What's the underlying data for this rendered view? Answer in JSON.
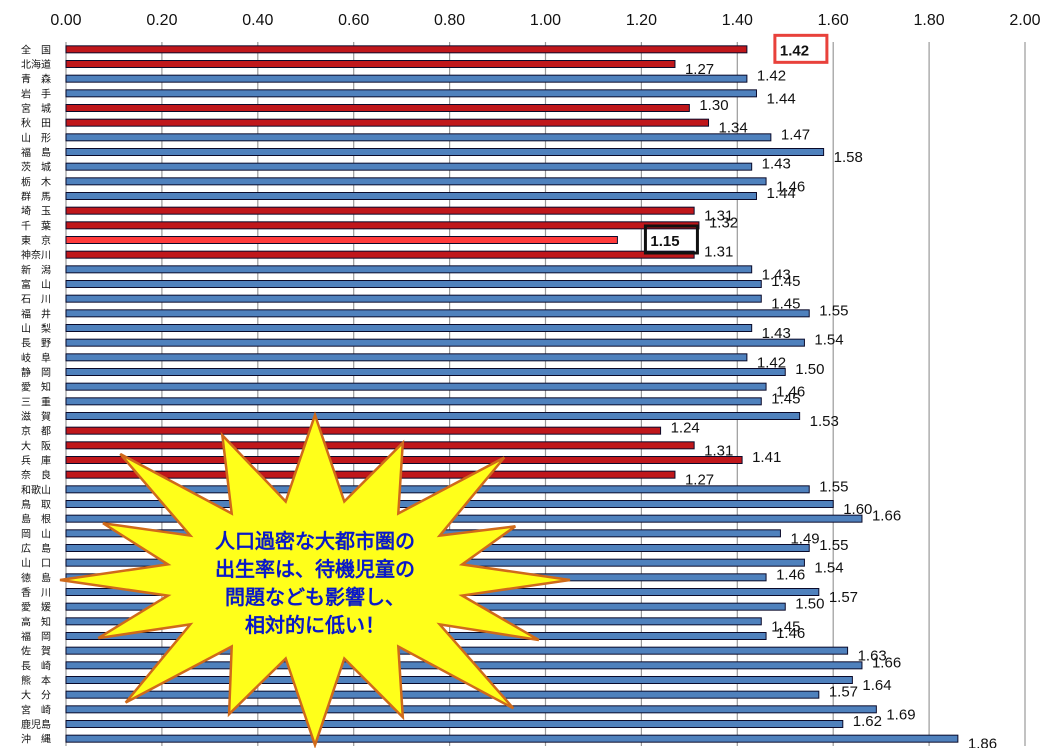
{
  "chart_data": {
    "type": "bar",
    "orientation": "horizontal",
    "xlim": [
      0,
      2.0
    ],
    "x_ticks": [
      "0.00",
      "0.20",
      "0.40",
      "0.60",
      "0.80",
      "1.00",
      "1.20",
      "1.40",
      "1.60",
      "1.80",
      "2.00"
    ],
    "x_tick_values": [
      0,
      0.2,
      0.4,
      0.6,
      0.8,
      1.0,
      1.2,
      1.4,
      1.6,
      1.8,
      2.0
    ],
    "grid": "vertical",
    "categories": [
      "全　国",
      "北海道",
      "青　森",
      "岩　手",
      "宮　城",
      "秋　田",
      "山　形",
      "福　島",
      "茨　城",
      "栃　木",
      "群　馬",
      "埼　玉",
      "千　葉",
      "東　京",
      "神奈川",
      "新　潟",
      "富　山",
      "石　川",
      "福　井",
      "山　梨",
      "長　野",
      "岐　阜",
      "静　岡",
      "愛　知",
      "三　重",
      "滋　賀",
      "京　都",
      "大　阪",
      "兵　庫",
      "奈　良",
      "和歌山",
      "鳥　取",
      "島　根",
      "岡　山",
      "広　島",
      "山　口",
      "徳　島",
      "香　川",
      "愛　媛",
      "高　知",
      "福　岡",
      "佐　賀",
      "長　崎",
      "熊　本",
      "大　分",
      "宮　崎",
      "鹿児島",
      "沖　縄"
    ],
    "values": [
      1.42,
      1.27,
      1.42,
      1.44,
      1.3,
      1.34,
      1.47,
      1.58,
      1.43,
      1.46,
      1.44,
      1.31,
      1.32,
      1.15,
      1.31,
      1.43,
      1.45,
      1.45,
      1.55,
      1.43,
      1.54,
      1.42,
      1.5,
      1.46,
      1.45,
      1.53,
      1.24,
      1.31,
      1.41,
      1.27,
      1.55,
      1.6,
      1.66,
      1.49,
      1.55,
      1.54,
      1.46,
      1.57,
      1.5,
      1.45,
      1.46,
      1.63,
      1.66,
      1.64,
      1.57,
      1.69,
      1.62,
      1.86
    ],
    "value_labels": [
      "1.42",
      "1.27",
      "1.42",
      "1.44",
      "1.30",
      "1.34",
      "1.47",
      "1.58",
      "1.43",
      "1.46",
      "1.44",
      "1.31",
      "1.32",
      "1.15",
      "1.31",
      "1.43",
      "1.45",
      "1.45",
      "1.55",
      "1.43",
      "1.54",
      "1.42",
      "1.50",
      "1.46",
      "1.45",
      "1.53",
      "1.24",
      "1.31",
      "1.41",
      "1.27",
      "1.55",
      "1.60",
      "1.66",
      "1.49",
      "1.55",
      "1.54",
      "1.46",
      "1.57",
      "1.50",
      "1.45",
      "1.46",
      "1.63",
      "1.66",
      "1.64",
      "1.57",
      "1.69",
      "1.62",
      "1.86"
    ],
    "bar_colors": [
      "red",
      "red",
      "blue",
      "blue",
      "red",
      "red",
      "blue",
      "blue",
      "blue",
      "blue",
      "blue",
      "red",
      "red",
      "lightred",
      "red",
      "blue",
      "blue",
      "blue",
      "blue",
      "blue",
      "blue",
      "blue",
      "blue",
      "blue",
      "blue",
      "blue",
      "red",
      "red",
      "red",
      "red",
      "blue",
      "blue",
      "blue",
      "blue",
      "blue",
      "blue",
      "blue",
      "blue",
      "blue",
      "blue",
      "blue",
      "blue",
      "blue",
      "blue",
      "blue",
      "blue",
      "blue",
      "blue"
    ],
    "highlighted": [
      {
        "category": "全　国",
        "label": "1.42",
        "box_color": "#e8413b"
      },
      {
        "category": "東　京",
        "label": "1.15",
        "box_color": "#111111"
      }
    ],
    "callout": {
      "lines": [
        "人口過密な大都市圏の",
        "出生率は、待機児童の",
        "問題なども影響し、",
        "相対的に低い！"
      ],
      "fill": "#ffff1a",
      "text_color": "#0a19c8"
    }
  },
  "colors": {
    "blue": "#4f81bd",
    "red": "#c0171b",
    "lightred": "#ff3b3b",
    "bar_outline": "#0a0a2a",
    "grid": "#9a9a9a"
  }
}
